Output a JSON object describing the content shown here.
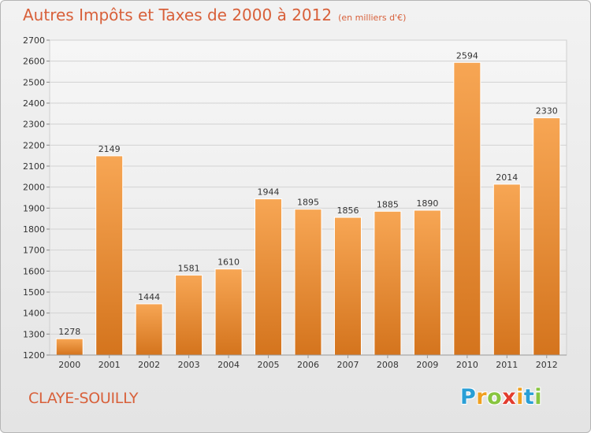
{
  "title": "Autres Impôts et Taxes de 2000 à 2012",
  "subtitle": "(en milliers d'€)",
  "city": "CLAYE-SOUILLY",
  "logo": {
    "letters": [
      "P",
      "r",
      "o",
      "x",
      "i",
      "t",
      "i"
    ],
    "colors": [
      "#2a9fd6",
      "#f0a020",
      "#88c540",
      "#e23c2e",
      "#f0a020",
      "#2a9fd6",
      "#88c540"
    ]
  },
  "colors": {
    "bar_light": "#f7a654",
    "bar_dark": "#d4741d",
    "title": "#d8603a"
  },
  "chart_data": {
    "type": "bar",
    "categories": [
      "2000",
      "2001",
      "2002",
      "2003",
      "2004",
      "2005",
      "2006",
      "2007",
      "2008",
      "2009",
      "2010",
      "2011",
      "2012"
    ],
    "values": [
      1278,
      2149,
      1444,
      1581,
      1610,
      1944,
      1895,
      1856,
      1885,
      1890,
      2594,
      2014,
      2330
    ],
    "ylim": [
      1200,
      2700
    ],
    "yticks": [
      1200,
      1300,
      1400,
      1500,
      1600,
      1700,
      1800,
      1900,
      2000,
      2100,
      2200,
      2300,
      2400,
      2500,
      2600,
      2700
    ],
    "grid": true,
    "xlabel": "",
    "ylabel": ""
  }
}
